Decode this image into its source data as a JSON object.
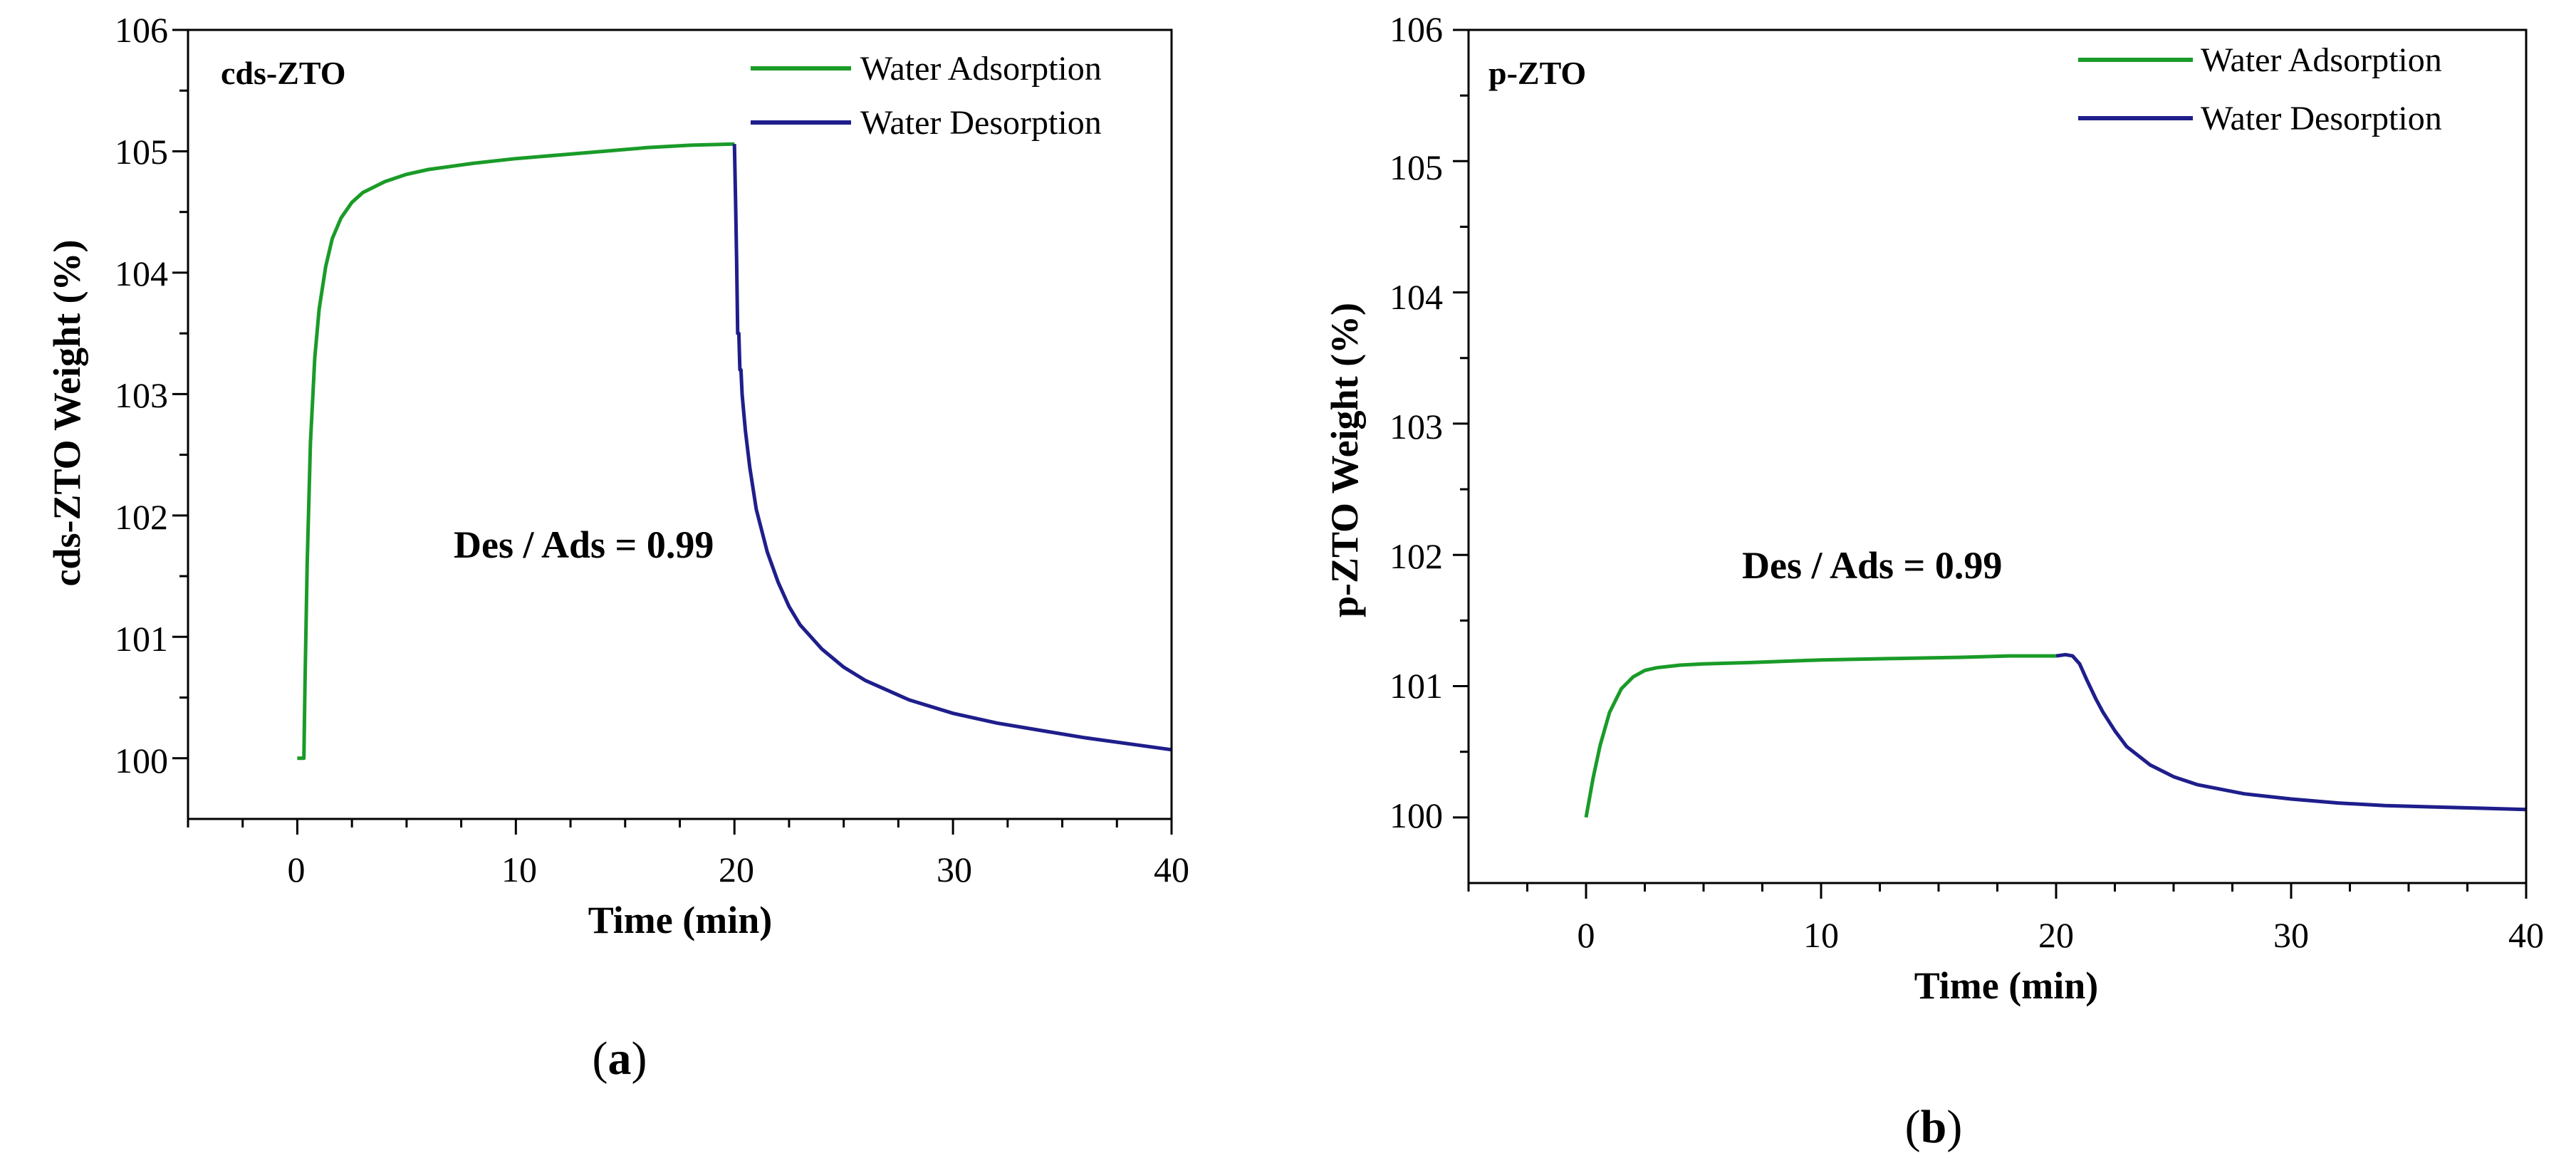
{
  "chart_data": [
    {
      "type": "line",
      "panel_label": "cds-ZTO",
      "caption": "a",
      "xlabel": "Time (min)",
      "ylabel": "cds-ZTO Weight (%)",
      "xlim": [
        -5,
        40
      ],
      "ylim": [
        99.5,
        106
      ],
      "xticks": [
        0,
        10,
        20,
        30,
        40
      ],
      "yticks": [
        100,
        101,
        102,
        103,
        104,
        105,
        106
      ],
      "annotation": "Des / Ads = 0.99",
      "series": [
        {
          "name": "Water Adsorption",
          "color": "#1a9b28",
          "x": [
            0,
            0.3,
            0.35,
            0.45,
            0.6,
            0.8,
            1.0,
            1.3,
            1.6,
            2.0,
            2.5,
            3,
            4,
            5,
            6,
            8,
            10,
            12,
            14,
            16,
            18,
            20
          ],
          "y": [
            100.0,
            100.0,
            100.6,
            101.6,
            102.6,
            103.3,
            103.7,
            104.05,
            104.28,
            104.45,
            104.58,
            104.66,
            104.75,
            104.81,
            104.85,
            104.9,
            104.94,
            104.97,
            105.0,
            105.03,
            105.05,
            105.06
          ]
        },
        {
          "name": "Water Desorption",
          "color": "#1e1e8c",
          "x": [
            20,
            20.05,
            20.1,
            20.15,
            20.2,
            20.25,
            20.3,
            20.35,
            20.4,
            20.5,
            20.7,
            21,
            21.5,
            22,
            22.5,
            23,
            24,
            25,
            26,
            28,
            30,
            32,
            34,
            36,
            38,
            40
          ],
          "y": [
            105.06,
            104.6,
            104.1,
            103.5,
            103.5,
            103.2,
            103.2,
            103.0,
            102.9,
            102.7,
            102.4,
            102.05,
            101.7,
            101.45,
            101.25,
            101.1,
            100.9,
            100.75,
            100.64,
            100.48,
            100.37,
            100.29,
            100.23,
            100.17,
            100.12,
            100.07
          ]
        }
      ]
    },
    {
      "type": "line",
      "panel_label": "p-ZTO",
      "caption": "b",
      "xlabel": "Time (min)",
      "ylabel": "p-ZTO Weight (%)",
      "xlim": [
        -5,
        40
      ],
      "ylim": [
        99.5,
        106
      ],
      "xticks": [
        0,
        10,
        20,
        30,
        40
      ],
      "yticks": [
        100,
        101,
        102,
        103,
        104,
        105,
        106
      ],
      "annotation": "Des / Ads = 0.99",
      "series": [
        {
          "name": "Water Adsorption",
          "color": "#1a9b28",
          "x": [
            0,
            0.3,
            0.6,
            1.0,
            1.5,
            2.0,
            2.5,
            3,
            4,
            5,
            7,
            10,
            13,
            16,
            18,
            20
          ],
          "y": [
            100.0,
            100.3,
            100.55,
            100.8,
            100.98,
            101.07,
            101.12,
            101.14,
            101.16,
            101.17,
            101.18,
            101.2,
            101.21,
            101.22,
            101.23,
            101.23
          ]
        },
        {
          "name": "Water Desorption",
          "color": "#1e1e8c",
          "x": [
            20,
            20.4,
            20.7,
            21.0,
            21.3,
            21.7,
            22,
            22.5,
            23,
            24,
            25,
            26,
            28,
            30,
            32,
            34,
            36,
            38,
            40
          ],
          "y": [
            101.23,
            101.24,
            101.23,
            101.17,
            101.05,
            100.9,
            100.8,
            100.66,
            100.54,
            100.4,
            100.31,
            100.25,
            100.18,
            100.14,
            100.11,
            100.09,
            100.08,
            100.07,
            100.06
          ]
        }
      ]
    }
  ]
}
